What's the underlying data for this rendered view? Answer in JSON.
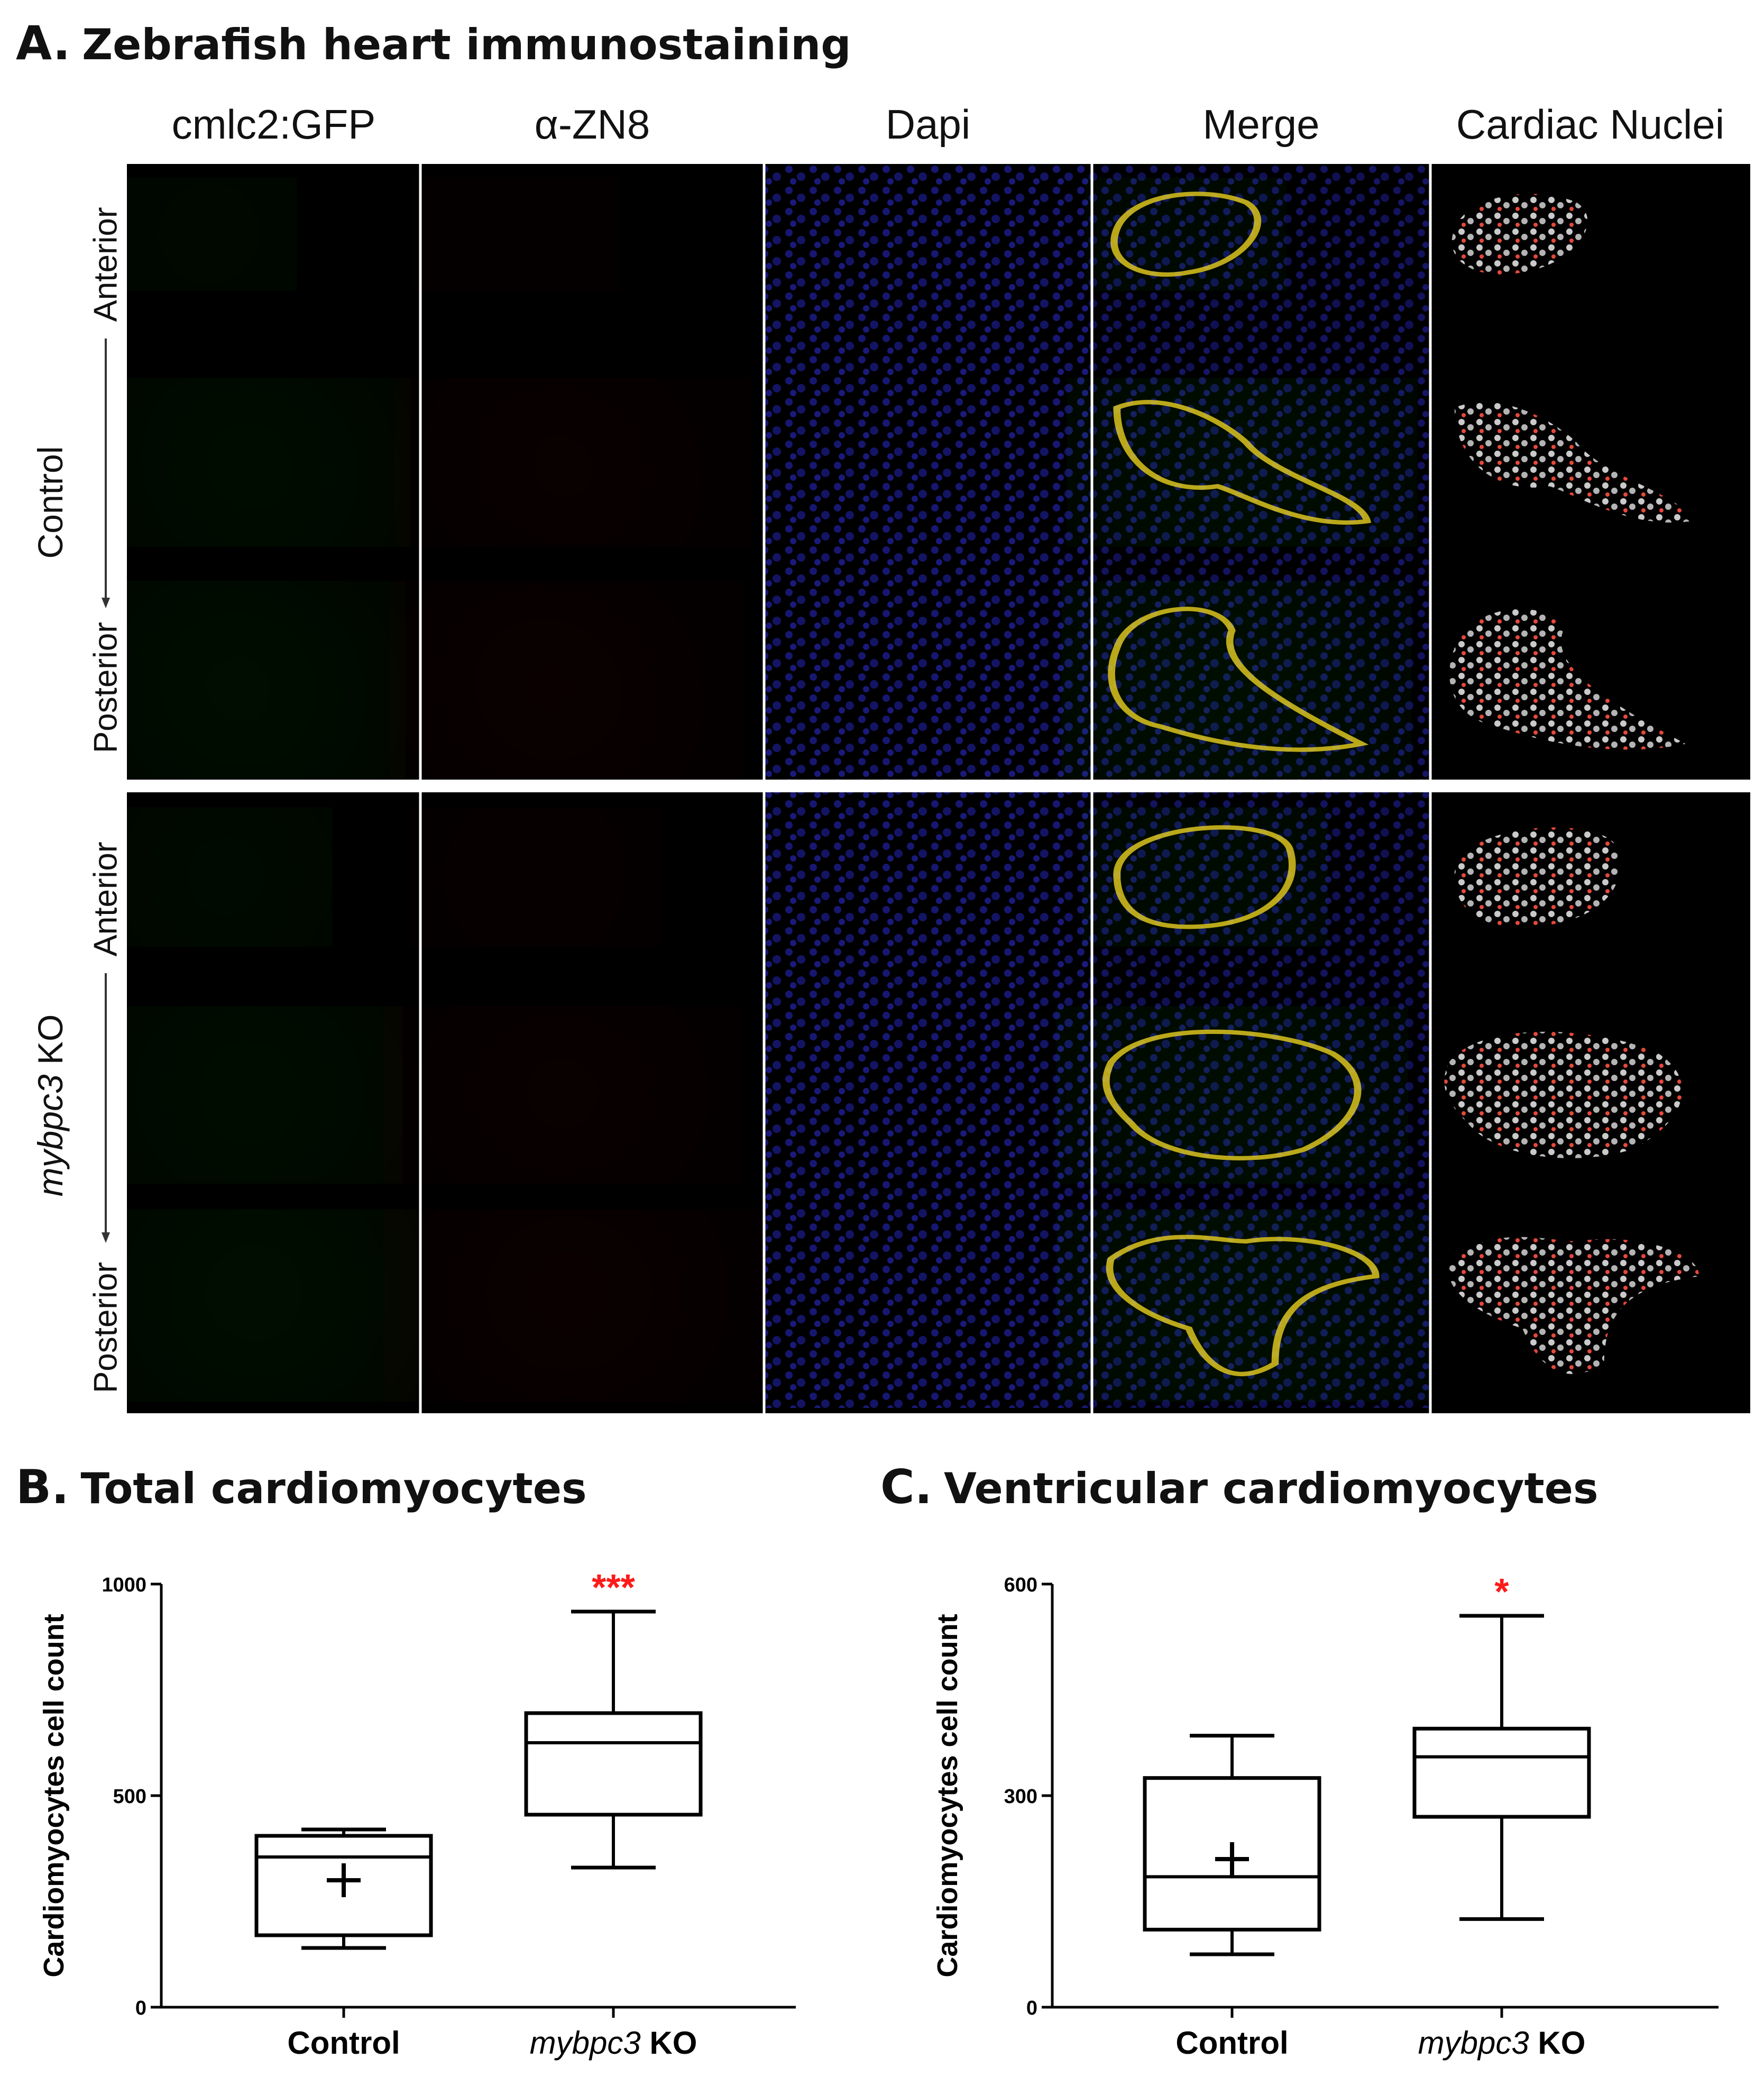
{
  "panel_a": {
    "letter": "A.",
    "title": "Zebrafish heart immunostaining",
    "columns": [
      "cmlc2:GFP",
      "α-ZN8",
      "Dapi",
      "Merge",
      "Cardiac Nuclei"
    ],
    "groups": [
      {
        "label": "Control",
        "italic_part": "",
        "rows": [
          "Anterior",
          "",
          "Posterior"
        ]
      },
      {
        "label": " KO",
        "italic_part": "mybpc3",
        "rows": [
          "Anterior",
          "",
          "Posterior"
        ]
      }
    ],
    "channel_colors": {
      "gfp": "#22e01a",
      "zn8": "#ff2a1a",
      "dapi": "#2a2ad8",
      "nuclei": "#d8d8d8"
    }
  },
  "panel_b": {
    "letter": "B.",
    "title": "Total cardiomyocytes"
  },
  "panel_c": {
    "letter": "C.",
    "title": "Ventricular cardiomyocytes"
  },
  "chart_data": [
    {
      "type": "box",
      "title": "Total cardiomyocytes",
      "ylabel": "Cardiomyocytes cell count",
      "ylim": [
        0,
        1000
      ],
      "yticks": [
        "0",
        "500",
        "1000"
      ],
      "categories": [
        {
          "pre": "Control",
          "italic": "",
          "post": ""
        },
        {
          "pre": "",
          "italic": "mybpc3",
          "post": " KO"
        }
      ],
      "boxes": [
        {
          "whisker_low": 140,
          "q1": 170,
          "median": 355,
          "q3": 405,
          "whisker_high": 420,
          "mean": 300,
          "significance": ""
        },
        {
          "whisker_low": 330,
          "q1": 455,
          "median": 625,
          "q3": 695,
          "whisker_high": 935,
          "mean": null,
          "significance": "***"
        }
      ],
      "significance_color": "#ff1a1a"
    },
    {
      "type": "box",
      "title": "Ventricular cardiomyocytes",
      "ylabel": "Cardiomyocytes cell count",
      "ylim": [
        0,
        600
      ],
      "yticks": [
        "0",
        "300",
        "600"
      ],
      "categories": [
        {
          "pre": "Control",
          "italic": "",
          "post": ""
        },
        {
          "pre": "",
          "italic": "mybpc3",
          "post": " KO"
        }
      ],
      "boxes": [
        {
          "whisker_low": 75,
          "q1": 110,
          "median": 185,
          "q3": 325,
          "whisker_high": 385,
          "mean": 210,
          "significance": ""
        },
        {
          "whisker_low": 125,
          "q1": 270,
          "median": 355,
          "q3": 395,
          "whisker_high": 555,
          "mean": null,
          "significance": "*"
        }
      ],
      "significance_color": "#ff1a1a"
    }
  ]
}
